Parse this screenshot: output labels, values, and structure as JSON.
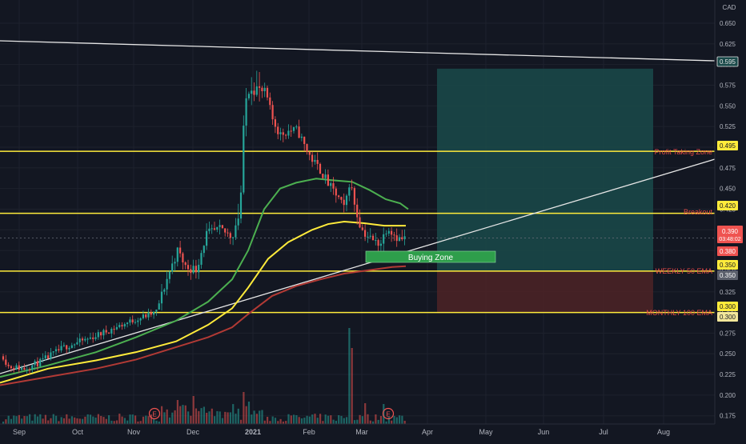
{
  "chart_data": {
    "type": "candlestick",
    "currency": "CAD",
    "x_ticks": [
      "Sep",
      "Oct",
      "Nov",
      "Dec",
      "2021",
      "Feb",
      "Mar",
      "Apr",
      "May",
      "Jun",
      "Jul",
      "Aug"
    ],
    "y_ticks": [
      "0.650",
      "0.625",
      "0.600",
      "0.575",
      "0.550",
      "0.525",
      "0.500",
      "0.475",
      "0.450",
      "0.425",
      "0.400",
      "0.375",
      "0.350",
      "0.325",
      "0.300",
      "0.275",
      "0.250",
      "0.225",
      "0.200",
      "0.175"
    ],
    "ylim": [
      0.16,
      0.66
    ],
    "horizontal_levels": [
      {
        "name": "Profit Taking Zone",
        "value": 0.495,
        "badge": "0.495"
      },
      {
        "name": "Breakout",
        "value": 0.42,
        "badge": "0.420"
      },
      {
        "name": "WEEKLY 50 EMA",
        "value": 0.35,
        "badge": "0.350"
      },
      {
        "name": "MONTHLY 100 EMA",
        "value": 0.3,
        "badge": "0.300"
      }
    ],
    "price_badges": {
      "current": "0.390",
      "countdown": "03:48:02",
      "below_current": "0.380",
      "lower_350": "0.350",
      "lower_300": "0.300",
      "target": "0.595"
    },
    "zone_label": "Buying Zone",
    "earnings_marker": "E",
    "trade_box": {
      "entry": 0.35,
      "target": 0.595,
      "stop": 0.3,
      "x_start": "2021-03-25",
      "x_end": "2021-07-27"
    },
    "colors": {
      "background": "#131722",
      "up": "#26a69a",
      "down": "#ef5350",
      "level": "#ffeb3b",
      "ema_green": "#4caf50",
      "ema_yellow": "#ffeb3b",
      "ema_red": "#b23a35",
      "profit_zone": "#1a4a4a",
      "stop_zone": "#4a2226",
      "buy_zone": "#2e9e4b"
    }
  }
}
